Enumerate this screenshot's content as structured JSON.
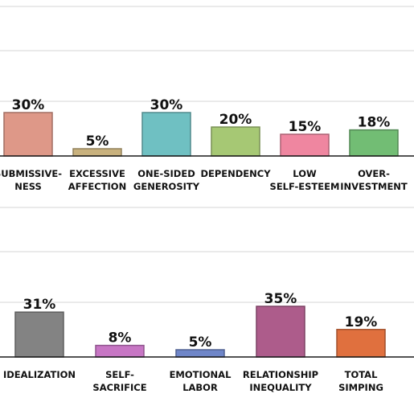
{
  "chart_data": [
    {
      "type": "bar",
      "categories": [
        [
          "SUBMISSIVE-",
          "NESS"
        ],
        [
          "EXCESSIVE",
          "AFFECTION"
        ],
        [
          "ONE-SIDED",
          "GENEROSITY"
        ],
        [
          "DEPENDENCY"
        ],
        [
          "LOW",
          "SELF-ESTEEM"
        ],
        [
          "OVER-",
          "INVESTMENT"
        ]
      ],
      "values": [
        30,
        5,
        30,
        20,
        15,
        18
      ],
      "data_labels": [
        "30%",
        "5%",
        "30%",
        "20%",
        "15%",
        "18%"
      ],
      "colors": [
        "#de9888",
        "#c9b27e",
        "#6fc0c2",
        "#a6c874",
        "#ef86a0",
        "#72bd74"
      ],
      "ylim": [
        0,
        90
      ],
      "grid": true
    },
    {
      "type": "bar",
      "categories": [
        [
          "IDEALIZATION"
        ],
        [
          "SELF-",
          "SACRIFICE"
        ],
        [
          "EMOTIONAL",
          "LABOR"
        ],
        [
          "RELATIONSHIP",
          "INEQUALITY"
        ],
        [
          "TOTAL",
          "SIMPING"
        ]
      ],
      "values": [
        31,
        8,
        5,
        35,
        19
      ],
      "data_labels": [
        "31%",
        "8%",
        "5%",
        "35%",
        "19%"
      ],
      "colors": [
        "#838383",
        "#c776c4",
        "#6f86c9",
        "#ad5c8b",
        "#e0703e"
      ],
      "ylim": [
        0,
        100
      ],
      "grid": true
    }
  ]
}
